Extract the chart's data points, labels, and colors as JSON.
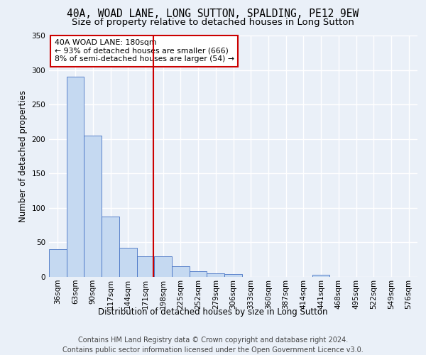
{
  "title_line1": "40A, WOAD LANE, LONG SUTTON, SPALDING, PE12 9EW",
  "title_line2": "Size of property relative to detached houses in Long Sutton",
  "xlabel": "Distribution of detached houses by size in Long Sutton",
  "ylabel": "Number of detached properties",
  "footnote": "Contains HM Land Registry data © Crown copyright and database right 2024.\nContains public sector information licensed under the Open Government Licence v3.0.",
  "bin_labels": [
    "36sqm",
    "63sqm",
    "90sqm",
    "117sqm",
    "144sqm",
    "171sqm",
    "198sqm",
    "225sqm",
    "252sqm",
    "279sqm",
    "306sqm",
    "333sqm",
    "360sqm",
    "387sqm",
    "414sqm",
    "441sqm",
    "468sqm",
    "495sqm",
    "522sqm",
    "549sqm",
    "576sqm"
  ],
  "bar_values": [
    40,
    290,
    205,
    88,
    42,
    30,
    30,
    15,
    8,
    5,
    4,
    0,
    0,
    0,
    0,
    3,
    0,
    0,
    0,
    0,
    0
  ],
  "bar_color": "#c5d9f1",
  "bar_edge_color": "#4472c4",
  "vline_x": 5.45,
  "vline_color": "#cc0000",
  "annotation_text": "40A WOAD LANE: 180sqm\n← 93% of detached houses are smaller (666)\n8% of semi-detached houses are larger (54) →",
  "annotation_box_color": "#cc0000",
  "ylim": [
    0,
    350
  ],
  "yticks": [
    0,
    50,
    100,
    150,
    200,
    250,
    300,
    350
  ],
  "bg_color": "#eaf0f8",
  "plot_bg_color": "#eaf0f8",
  "grid_color": "#ffffff",
  "title_fontsize": 10.5,
  "subtitle_fontsize": 9.5,
  "axis_label_fontsize": 8.5,
  "tick_fontsize": 7.5,
  "footnote_fontsize": 7.0
}
